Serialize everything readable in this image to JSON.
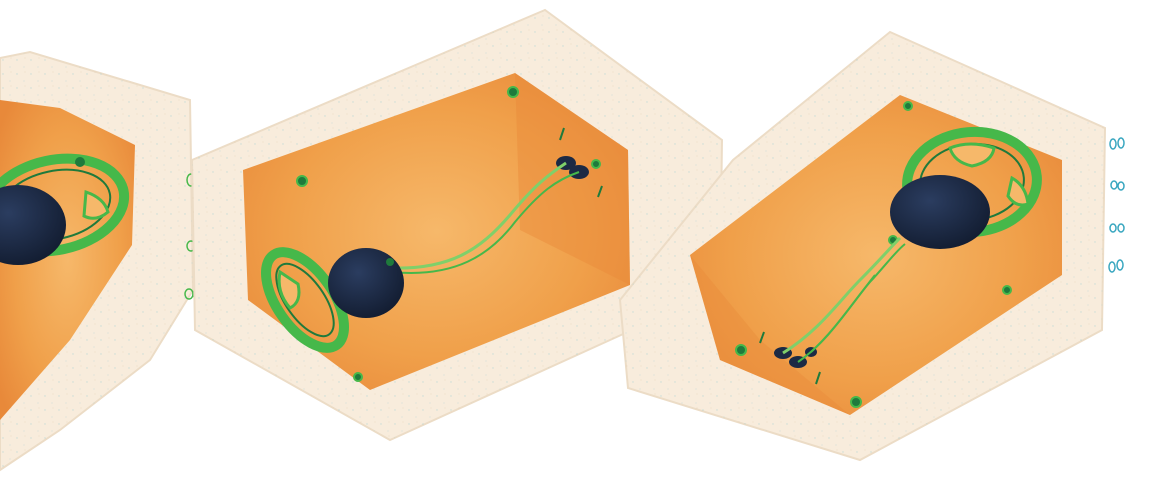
{
  "image": {
    "subject": "x-ray-scan",
    "items": [
      {
        "name": "speaker-enclosure-left"
      },
      {
        "name": "speaker-enclosure-middle"
      },
      {
        "name": "speaker-enclosure-right"
      }
    ],
    "colors": {
      "background": "#ffffff",
      "outer_shell": "#f8ecdc",
      "outer_shell_edge": "#ecdcc6",
      "cavity": "#f0a04a",
      "cavity_dark": "#e8893a",
      "cavity_light": "#f6b86a",
      "metal": "#46b84a",
      "metal_dark": "#1f7a3c",
      "magnet": "#1c2a44",
      "wire": "#7fd06a",
      "speckle": "#8fc7d0"
    }
  }
}
